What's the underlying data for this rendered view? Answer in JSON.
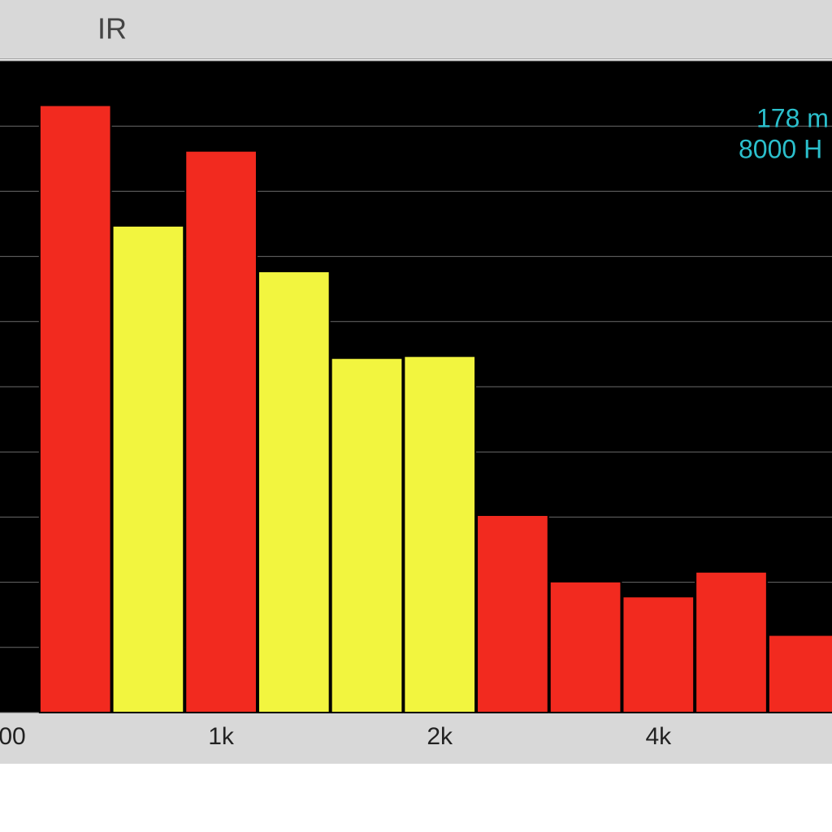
{
  "header": {
    "title": "IR"
  },
  "chart_data": {
    "type": "bar",
    "categories": [
      "00",
      null,
      null,
      "1k",
      null,
      null,
      "2k",
      null,
      null,
      "4k",
      null,
      null
    ],
    "values": [
      null,
      9.32,
      7.47,
      8.62,
      6.77,
      5.44,
      5.47,
      3.03,
      2.01,
      1.78,
      2.16,
      1.19
    ],
    "colors": [
      "#f22a1f",
      "#f22a1f",
      "#f2f53f",
      "#f22a1f",
      "#f2f53f",
      "#f2f53f",
      "#f2f53f",
      "#f22a1f",
      "#f22a1f",
      "#f22a1f",
      "#f22a1f",
      "#f22a1f"
    ],
    "ylim": [
      0,
      10
    ],
    "yticks": [
      0,
      1,
      2,
      3,
      4,
      5,
      6,
      7,
      8,
      9,
      10
    ],
    "grid": true,
    "annotations": [
      "178 m",
      "8000 H"
    ]
  }
}
